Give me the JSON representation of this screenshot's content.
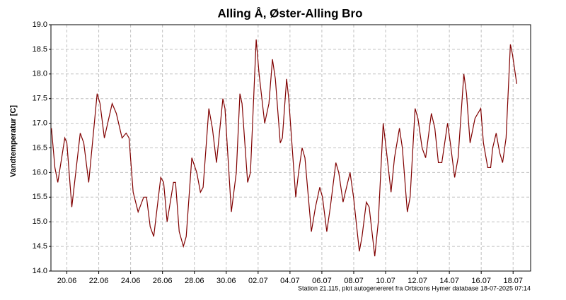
{
  "chart_data": {
    "type": "line",
    "title": "Alling Å, Øster-Alling Bro",
    "y_label": "Vandtemperatur [C]",
    "footer": "Station 21.115, plot autogenereret fra Orbicons Hymer database 18-07-2025 07:14",
    "xlim": [
      0,
      30.1
    ],
    "xticks": [
      {
        "value": 1,
        "label": "20.06"
      },
      {
        "value": 3,
        "label": "22.06"
      },
      {
        "value": 5,
        "label": "24.06"
      },
      {
        "value": 7,
        "label": "26.06"
      },
      {
        "value": 9,
        "label": "28.06"
      },
      {
        "value": 11,
        "label": "30.06"
      },
      {
        "value": 13,
        "label": "02.07"
      },
      {
        "value": 15,
        "label": "04.07"
      },
      {
        "value": 17,
        "label": "06.07"
      },
      {
        "value": 19,
        "label": "08.07"
      },
      {
        "value": 21,
        "label": "10.07"
      },
      {
        "value": 23,
        "label": "12.07"
      },
      {
        "value": 25,
        "label": "14.07"
      },
      {
        "value": 27,
        "label": "16.07"
      },
      {
        "value": 29,
        "label": "18.07"
      }
    ],
    "ylim": [
      14,
      19
    ],
    "yticks": [
      {
        "value": 14,
        "label": "14.0"
      },
      14.5,
      {
        "value": 15,
        "label": "15.0"
      },
      15.5,
      {
        "value": 16,
        "label": "16.0"
      },
      16.5,
      {
        "value": 17,
        "label": "17.0"
      },
      17.5,
      {
        "value": 18,
        "label": "18.0"
      },
      18.5,
      {
        "value": 19,
        "label": "19.0"
      }
    ],
    "grid": true,
    "series": [
      {
        "color": "#800000",
        "x": [
          0.03,
          0.25,
          0.43,
          0.87,
          1.0,
          1.31,
          1.84,
          2.06,
          2.37,
          2.9,
          3.08,
          3.35,
          3.84,
          4.1,
          4.46,
          4.72,
          4.9,
          5.16,
          5.47,
          5.82,
          6.0,
          6.23,
          6.45,
          6.89,
          7.07,
          7.29,
          7.69,
          7.82,
          8.05,
          8.31,
          8.49,
          8.84,
          9.15,
          9.38,
          9.55,
          9.91,
          10.13,
          10.39,
          10.79,
          10.92,
          11.32,
          11.63,
          11.86,
          11.99,
          12.34,
          12.52,
          12.88,
          13.06,
          13.41,
          13.68,
          13.9,
          14.08,
          14.39,
          14.52,
          14.79,
          14.92,
          15.36,
          15.54,
          15.76,
          15.94,
          16.34,
          16.6,
          16.87,
          17.04,
          17.31,
          17.53,
          17.88,
          18.06,
          18.33,
          18.55,
          18.77,
          18.99,
          19.35,
          19.52,
          19.79,
          19.97,
          20.32,
          20.54,
          20.85,
          21.03,
          21.34,
          21.56,
          21.87,
          22.05,
          22.36,
          22.54,
          22.85,
          23.03,
          23.29,
          23.51,
          23.87,
          24.09,
          24.31,
          24.53,
          24.89,
          25.06,
          25.33,
          25.55,
          25.91,
          26.08,
          26.3,
          26.61,
          26.97,
          27.14,
          27.41,
          27.59,
          27.72,
          27.94,
          28.16,
          28.34,
          28.56,
          28.83,
          28.96,
          29.23
        ],
        "values": [
          16.9,
          16.1,
          15.8,
          16.7,
          16.6,
          15.3,
          16.8,
          16.6,
          15.8,
          17.6,
          17.4,
          16.7,
          17.4,
          17.2,
          16.7,
          16.8,
          16.7,
          15.6,
          15.2,
          15.5,
          15.5,
          14.9,
          14.7,
          15.9,
          15.8,
          15.0,
          15.8,
          15.8,
          14.8,
          14.5,
          14.7,
          16.3,
          16.0,
          15.6,
          15.7,
          17.3,
          16.9,
          16.2,
          17.5,
          17.3,
          15.2,
          16.0,
          17.6,
          17.4,
          15.8,
          16.0,
          18.7,
          18.0,
          17.0,
          17.4,
          18.3,
          17.9,
          16.6,
          16.7,
          17.9,
          17.5,
          15.5,
          16.0,
          16.5,
          16.3,
          14.8,
          15.3,
          15.7,
          15.5,
          14.8,
          15.3,
          16.2,
          16.0,
          15.4,
          15.7,
          16.0,
          15.5,
          14.4,
          14.7,
          15.4,
          15.3,
          14.3,
          15.0,
          17.0,
          16.5,
          15.6,
          16.3,
          16.9,
          16.5,
          15.2,
          15.5,
          17.3,
          17.1,
          16.5,
          16.3,
          17.2,
          16.9,
          16.2,
          16.2,
          17.0,
          16.6,
          15.9,
          16.3,
          18.0,
          17.6,
          16.6,
          17.1,
          17.3,
          16.6,
          16.1,
          16.1,
          16.5,
          16.8,
          16.4,
          16.2,
          16.7,
          18.6,
          18.4,
          17.8
        ]
      }
    ]
  }
}
